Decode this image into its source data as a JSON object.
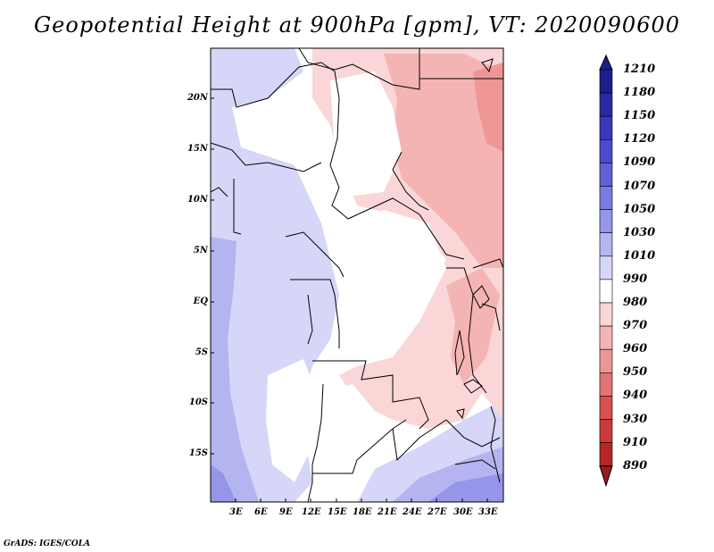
{
  "title": "Geopotential Height at 900hPa [gpm], VT: 2020090600",
  "credit": "GrADS: IGES/COLA",
  "map": {
    "lat_labels": [
      "20N",
      "15N",
      "10N",
      "5N",
      "EQ",
      "5S",
      "10S",
      "15S"
    ],
    "lon_labels": [
      "3E",
      "6E",
      "9E",
      "12E",
      "15E",
      "18E",
      "21E",
      "24E",
      "27E",
      "30E",
      "33E"
    ]
  },
  "legend": {
    "levels": [
      "1210",
      "1180",
      "1150",
      "1120",
      "1090",
      "1070",
      "1050",
      "1030",
      "1010",
      "990",
      "980",
      "970",
      "960",
      "950",
      "940",
      "930",
      "910",
      "890"
    ],
    "colors": [
      "#1e1e8c",
      "#2a2aa6",
      "#3838bb",
      "#4b4bcc",
      "#6060d8",
      "#7a7ae2",
      "#9595ea",
      "#b4b4f0",
      "#d6d6f8",
      "#ffffff",
      "#fad6d6",
      "#f5b4b4",
      "#ee9696",
      "#e37474",
      "#d85050",
      "#cb3a3a",
      "#b62626",
      "#9a1a1a"
    ]
  }
}
